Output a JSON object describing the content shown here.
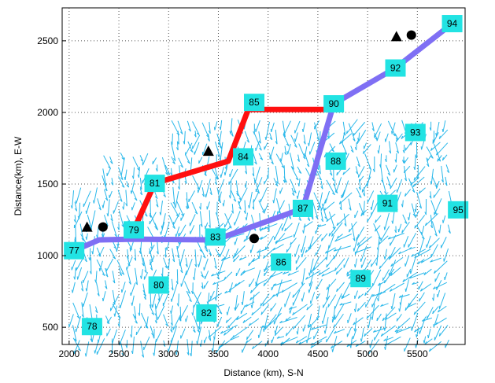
{
  "chart_data": {
    "type": "scatter",
    "title": "",
    "xlabel": "Distance (km), S-N",
    "ylabel": "Distance(km), E-W",
    "xlim": [
      1930,
      5980
    ],
    "ylim": [
      380,
      2730
    ],
    "xticks": [
      2000,
      2500,
      3000,
      3500,
      4000,
      4500,
      5000,
      5500
    ],
    "yticks": [
      500,
      1000,
      1500,
      2000,
      2500
    ],
    "grid": true,
    "colors": {
      "red_track": "#ff1010",
      "blue_track": "#7f6ff4",
      "station_box": "#22e3e3",
      "vectors": "#2ab8ea",
      "markers": "#000000"
    },
    "stations": [
      {
        "id": "77",
        "x": 2050,
        "y": 1035
      },
      {
        "id": "78",
        "x": 2230,
        "y": 505
      },
      {
        "id": "79",
        "x": 2650,
        "y": 1180
      },
      {
        "id": "80",
        "x": 2900,
        "y": 795
      },
      {
        "id": "81",
        "x": 2860,
        "y": 1505
      },
      {
        "id": "82",
        "x": 3380,
        "y": 600
      },
      {
        "id": "83",
        "x": 3470,
        "y": 1130
      },
      {
        "id": "84",
        "x": 3750,
        "y": 1690
      },
      {
        "id": "85",
        "x": 3860,
        "y": 2070
      },
      {
        "id": "86",
        "x": 4130,
        "y": 955
      },
      {
        "id": "87",
        "x": 4350,
        "y": 1330
      },
      {
        "id": "88",
        "x": 4680,
        "y": 1660
      },
      {
        "id": "89",
        "x": 4930,
        "y": 840
      },
      {
        "id": "90",
        "x": 4660,
        "y": 2060
      },
      {
        "id": "91",
        "x": 5200,
        "y": 1365
      },
      {
        "id": "92",
        "x": 5280,
        "y": 2310
      },
      {
        "id": "93",
        "x": 5480,
        "y": 1860
      },
      {
        "id": "94",
        "x": 5850,
        "y": 2620
      },
      {
        "id": "95",
        "x": 5910,
        "y": 1320
      }
    ],
    "red_track": [
      {
        "x": 2650,
        "y": 1180
      },
      {
        "x": 2860,
        "y": 1505
      },
      {
        "x": 3600,
        "y": 1660
      },
      {
        "x": 3800,
        "y": 2020
      },
      {
        "x": 4660,
        "y": 2020
      }
    ],
    "blue_track": [
      {
        "x": 2050,
        "y": 1035
      },
      {
        "x": 2300,
        "y": 1110
      },
      {
        "x": 2650,
        "y": 1115
      },
      {
        "x": 3470,
        "y": 1110
      },
      {
        "x": 4350,
        "y": 1330
      },
      {
        "x": 4660,
        "y": 2060
      },
      {
        "x": 5280,
        "y": 2310
      },
      {
        "x": 5850,
        "y": 2620
      }
    ],
    "triangles": [
      {
        "x": 2180,
        "y": 1200
      },
      {
        "x": 3400,
        "y": 1730
      },
      {
        "x": 5290,
        "y": 2530
      }
    ],
    "circles": [
      {
        "x": 2340,
        "y": 1200
      },
      {
        "x": 3860,
        "y": 1120
      },
      {
        "x": 5440,
        "y": 2540
      }
    ]
  }
}
